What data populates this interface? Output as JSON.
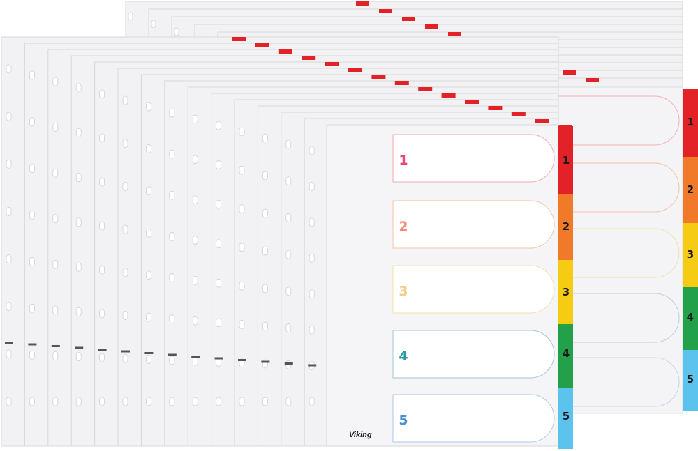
{
  "brand_label": "Viking",
  "colors": {
    "red": "#e32228",
    "orange": "#f07a2a",
    "yellow": "#f6cb14",
    "green": "#22a04a",
    "blue": "#5cc2ee",
    "sheet": "#f2f2f4",
    "sheet_edge": "#d8d8dc",
    "field_outline_red": "#f3a9ad",
    "field_outline_orange": "#f5c2a2",
    "field_outline_yellow": "#f4dfa0",
    "field_outline_green": "#9fc4d8",
    "field_outline_blue": "#a8c8ea",
    "front_num_red": "#e8457a",
    "front_num_orange": "#f3907a",
    "front_num_yellow": "#f6cc8a",
    "front_num_green": "#2b9aa8",
    "front_num_blue": "#4a90d6"
  },
  "front_set": {
    "tabs": [
      {
        "label": "1",
        "color": "red"
      },
      {
        "label": "2",
        "color": "orange"
      },
      {
        "label": "3",
        "color": "yellow"
      },
      {
        "label": "4",
        "color": "green"
      },
      {
        "label": "5",
        "color": "blue"
      }
    ],
    "fields": [
      {
        "label": "1",
        "color": "front_num_red",
        "outline": "field_outline_red"
      },
      {
        "label": "2",
        "color": "front_num_orange",
        "outline": "field_outline_orange"
      },
      {
        "label": "3",
        "color": "front_num_yellow",
        "outline": "field_outline_yellow"
      },
      {
        "label": "4",
        "color": "front_num_green",
        "outline": "field_outline_green"
      },
      {
        "label": "5",
        "color": "front_num_blue",
        "outline": "field_outline_blue"
      }
    ]
  },
  "back_set": {
    "tabs": [
      {
        "label": "1",
        "color": "red"
      },
      {
        "label": "2",
        "color": "orange"
      },
      {
        "label": "3",
        "color": "yellow"
      },
      {
        "label": "4",
        "color": "green"
      },
      {
        "label": "5",
        "color": "blue"
      }
    ]
  },
  "stack": {
    "front_sheet_count": 15,
    "back_sheet_count": 11
  }
}
